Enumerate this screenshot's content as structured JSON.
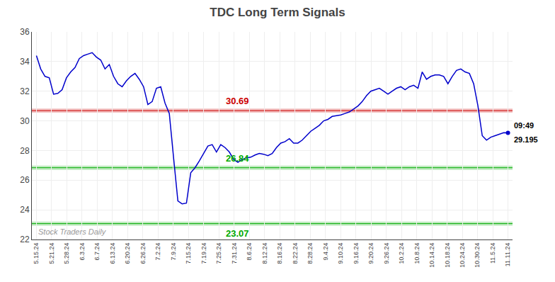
{
  "chart_data": {
    "type": "line",
    "title": "TDC Long Term Signals",
    "color": "#0000cc",
    "values": [
      34.4,
      33.5,
      33.0,
      32.9,
      31.8,
      31.85,
      32.1,
      32.9,
      33.3,
      33.6,
      34.2,
      34.4,
      34.5,
      34.6,
      34.3,
      34.1,
      33.5,
      33.8,
      33.0,
      32.5,
      32.3,
      32.7,
      33.0,
      33.2,
      32.8,
      32.3,
      31.1,
      31.3,
      32.2,
      32.3,
      31.2,
      30.5,
      27.5,
      24.6,
      24.4,
      24.45,
      26.5,
      26.84,
      27.3,
      27.8,
      28.3,
      28.4,
      27.9,
      28.4,
      28.2,
      27.9,
      27.4,
      27.2,
      27.4,
      27.5,
      27.55,
      27.7,
      27.8,
      27.75,
      27.65,
      27.8,
      28.2,
      28.5,
      28.6,
      28.8,
      28.5,
      28.5,
      28.7,
      29.0,
      29.3,
      29.5,
      29.7,
      30.0,
      30.1,
      30.3,
      30.35,
      30.4,
      30.5,
      30.6,
      30.8,
      31.0,
      31.3,
      31.7,
      32.0,
      32.1,
      32.2,
      32.0,
      31.8,
      32.0,
      32.2,
      32.3,
      32.1,
      32.3,
      32.4,
      32.2,
      33.3,
      32.8,
      33.0,
      33.1,
      33.1,
      33.0,
      32.5,
      33.0,
      33.4,
      33.5,
      33.3,
      33.2,
      32.5,
      31.0,
      29.0,
      28.7,
      28.9,
      29.0,
      29.1,
      29.2,
      29.195
    ],
    "xlim": [
      -0.3,
      31.3
    ],
    "xticks": [
      {
        "value": 0,
        "label": "5.15.24"
      },
      {
        "value": 1,
        "label": "5.21.24"
      },
      {
        "value": 2,
        "label": "5.28.24"
      },
      {
        "value": 3,
        "label": "6.3.24"
      },
      {
        "value": 4,
        "label": "6.7.24"
      },
      {
        "value": 5,
        "label": "6.13.24"
      },
      {
        "value": 6,
        "label": "6.20.24"
      },
      {
        "value": 7,
        "label": "6.26.24"
      },
      {
        "value": 8,
        "label": "7.2.24"
      },
      {
        "value": 9,
        "label": "7.9.24"
      },
      {
        "value": 10,
        "label": "7.15.24"
      },
      {
        "value": 11,
        "label": "7.19.24"
      },
      {
        "value": 12,
        "label": "7.25.24"
      },
      {
        "value": 13,
        "label": "7.31.24"
      },
      {
        "value": 14,
        "label": "8.6.24"
      },
      {
        "value": 15,
        "label": "8.12.24"
      },
      {
        "value": 16,
        "label": "8.16.24"
      },
      {
        "value": 17,
        "label": "8.22.24"
      },
      {
        "value": 18,
        "label": "8.28.24"
      },
      {
        "value": 19,
        "label": "9.4.24"
      },
      {
        "value": 20,
        "label": "9.10.24"
      },
      {
        "value": 21,
        "label": "9.16.24"
      },
      {
        "value": 22,
        "label": "9.20.24"
      },
      {
        "value": 23,
        "label": "9.26.24"
      },
      {
        "value": 24,
        "label": "10.2.24"
      },
      {
        "value": 25,
        "label": "10.8.24"
      },
      {
        "value": 26,
        "label": "10.14.24"
      },
      {
        "value": 27,
        "label": "10.18.24"
      },
      {
        "value": 28,
        "label": "10.24.24"
      },
      {
        "value": 29,
        "label": "10.30.24"
      },
      {
        "value": 30,
        "label": "11.5.24"
      },
      {
        "value": 31,
        "label": "11.11.24"
      }
    ],
    "ylim": [
      22,
      36
    ],
    "yticks": [
      22,
      24,
      26,
      28,
      30,
      32,
      34,
      36
    ],
    "grid": true,
    "levels": [
      {
        "value": 30.69,
        "color": "#cc0000"
      },
      {
        "value": 26.84,
        "color": "#00aa00"
      },
      {
        "value": 23.07,
        "color": "#00aa00"
      }
    ],
    "annotations": [
      "09:49",
      "29.195"
    ],
    "watermark": "Stock Traders Daily"
  }
}
